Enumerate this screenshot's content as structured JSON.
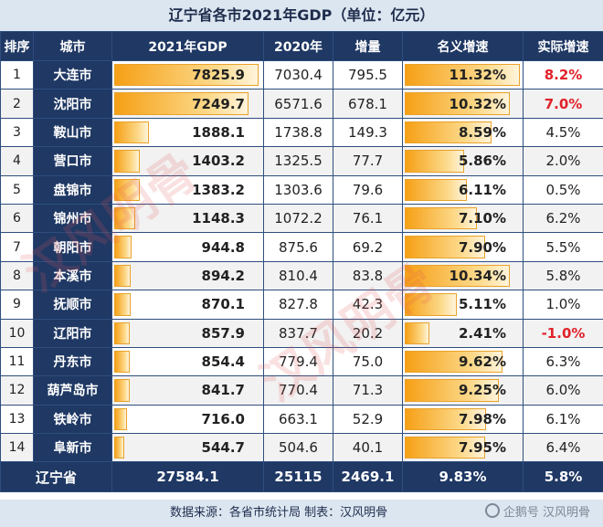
{
  "title": "辽宁省各市2021年GDP（单位：亿元）",
  "headers": [
    "排序",
    "城市",
    "2021年GDP",
    "2020年",
    "增量",
    "名义增速",
    "实际增速"
  ],
  "rows": [
    {
      "rank": "1",
      "city": "大连市",
      "gdp2021": "7825.9",
      "gdp2020": "7030.4",
      "increase": "795.5",
      "nominal": "11.32%",
      "real": "8.2%",
      "real_red": true
    },
    {
      "rank": "2",
      "city": "沈阳市",
      "gdp2021": "7249.7",
      "gdp2020": "6571.6",
      "increase": "678.1",
      "nominal": "10.32%",
      "real": "7.0%",
      "real_red": true
    },
    {
      "rank": "3",
      "city": "鞍山市",
      "gdp2021": "1888.1",
      "gdp2020": "1738.8",
      "increase": "149.3",
      "nominal": "8.59%",
      "real": "4.5%",
      "real_red": false
    },
    {
      "rank": "4",
      "city": "营口市",
      "gdp2021": "1403.2",
      "gdp2020": "1325.5",
      "increase": "77.7",
      "nominal": "5.86%",
      "real": "2.0%",
      "real_red": false
    },
    {
      "rank": "5",
      "city": "盘锦市",
      "gdp2021": "1383.2",
      "gdp2020": "1303.6",
      "increase": "79.6",
      "nominal": "6.11%",
      "real": "0.5%",
      "real_red": false
    },
    {
      "rank": "6",
      "city": "锦州市",
      "gdp2021": "1148.3",
      "gdp2020": "1072.2",
      "increase": "76.1",
      "nominal": "7.10%",
      "real": "6.2%",
      "real_red": false
    },
    {
      "rank": "7",
      "city": "朝阳市",
      "gdp2021": "944.8",
      "gdp2020": "875.6",
      "increase": "69.2",
      "nominal": "7.90%",
      "real": "5.5%",
      "real_red": false
    },
    {
      "rank": "8",
      "city": "本溪市",
      "gdp2021": "894.2",
      "gdp2020": "810.4",
      "increase": "83.8",
      "nominal": "10.34%",
      "real": "5.8%",
      "real_red": false
    },
    {
      "rank": "9",
      "city": "抚顺市",
      "gdp2021": "870.1",
      "gdp2020": "827.8",
      "increase": "42.3",
      "nominal": "5.11%",
      "real": "1.0%",
      "real_red": false
    },
    {
      "rank": "10",
      "city": "辽阳市",
      "gdp2021": "857.9",
      "gdp2020": "837.7",
      "increase": "20.2",
      "nominal": "2.41%",
      "real": "-1.0%",
      "real_red": true
    },
    {
      "rank": "11",
      "city": "丹东市",
      "gdp2021": "854.4",
      "gdp2020": "779.4",
      "increase": "75.0",
      "nominal": "9.62%",
      "real": "6.3%",
      "real_red": false
    },
    {
      "rank": "12",
      "city": "葫芦岛市",
      "gdp2021": "841.7",
      "gdp2020": "770.4",
      "increase": "71.3",
      "nominal": "9.25%",
      "real": "6.0%",
      "real_red": false
    },
    {
      "rank": "13",
      "city": "铁岭市",
      "gdp2021": "716.0",
      "gdp2020": "663.1",
      "increase": "52.9",
      "nominal": "7.98%",
      "real": "6.1%",
      "real_red": false
    },
    {
      "rank": "14",
      "city": "阜新市",
      "gdp2021": "544.7",
      "gdp2020": "504.6",
      "increase": "40.1",
      "nominal": "7.95%",
      "real": "6.4%",
      "real_red": false
    }
  ],
  "total": {
    "city": "辽宁省",
    "gdp2021": "27584.1",
    "gdp2020": "25115",
    "increase": "2469.1",
    "nominal": "9.83%",
    "real": "5.8%"
  },
  "footer": {
    "source": "数据来源：各省市统计局    制表：汉风明骨",
    "watermark": "企鹅号 汉风明骨"
  },
  "watermark_text": "汉风明骨",
  "bar_color": "#f6a016",
  "header_bg": "#1f3864",
  "accent_red": "#e0222a"
}
